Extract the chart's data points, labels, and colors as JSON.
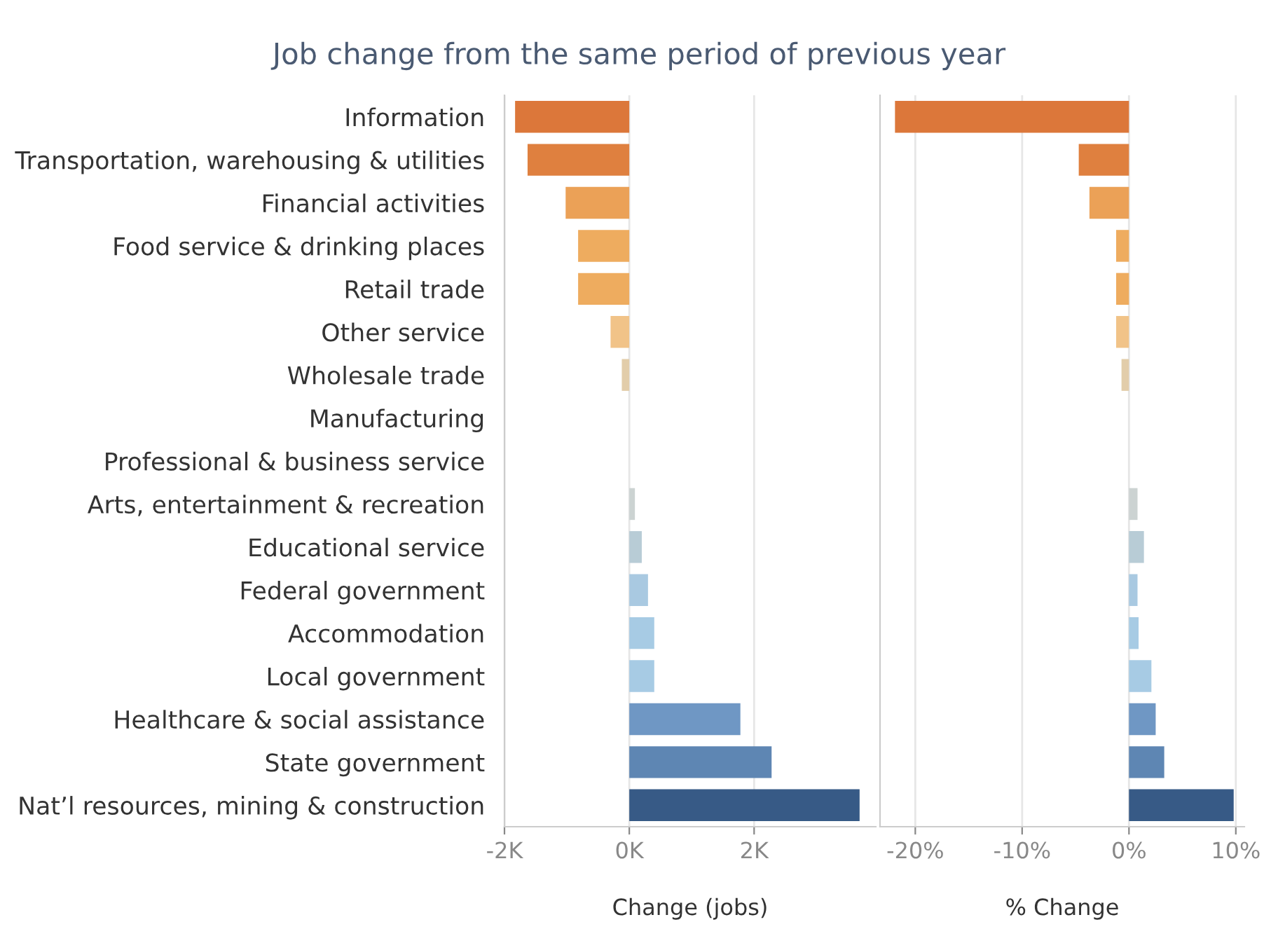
{
  "chart_data": [
    {
      "type": "bar",
      "orientation": "horizontal",
      "title": "Job change from the same period of previous year",
      "xlabel": "Change (jobs)",
      "categories": [
        "Information",
        "Transportation, warehousing & utilities",
        "Financial activities",
        "Food service & drinking places",
        "Retail trade",
        "Other service",
        "Wholesale trade",
        "Manufacturing",
        "Professional & business service",
        "Arts, entertainment & recreation",
        "Educational service",
        "Federal government",
        "Accommodation",
        "Local government",
        "Healthcare & social assistance",
        "State government",
        "Nat’l resources, mining & construction"
      ],
      "values": [
        -1830,
        -1630,
        -1020,
        -820,
        -820,
        -300,
        -120,
        null,
        null,
        90,
        200,
        300,
        400,
        400,
        1780,
        2280,
        3690
      ],
      "colors": [
        "#dc773a",
        "#df803f",
        "#eba157",
        "#eeac5f",
        "#eeac5f",
        "#f1c388",
        "#e2cdaa",
        "#ddd5c6",
        "#ddd8cf",
        "#ccd3d2",
        "#b8ccd6",
        "#a9c9e1",
        "#a7cbe4",
        "#a7cbe4",
        "#6f97c4",
        "#5e86b3",
        "#375a86"
      ],
      "xlim": [
        -2000,
        3950
      ],
      "xticks": [
        {
          "value": -2000,
          "label": "-2K"
        },
        {
          "value": 0,
          "label": "0K"
        },
        {
          "value": 2000,
          "label": "2K"
        }
      ],
      "grid": "x"
    },
    {
      "type": "bar",
      "orientation": "horizontal",
      "xlabel": "% Change",
      "categories": [
        null,
        null,
        null,
        null,
        null,
        null,
        null,
        null,
        null,
        null,
        null,
        null,
        null,
        null,
        null,
        null,
        null
      ],
      "values": [
        -21.9,
        -4.7,
        -3.7,
        -1.2,
        -1.2,
        -1.2,
        -0.7,
        null,
        null,
        0.8,
        1.4,
        0.8,
        0.9,
        2.1,
        2.5,
        3.3,
        9.8
      ],
      "colors": [
        "#dc773a",
        "#df803f",
        "#eba157",
        "#eeac5f",
        "#eeac5f",
        "#f1c388",
        "#e2cdaa",
        "#ddd5c6",
        "#ddd8cf",
        "#ccd3d2",
        "#b8ccd6",
        "#a9c9e1",
        "#a7cbe4",
        "#a7cbe4",
        "#6f97c4",
        "#5e86b3",
        "#375a86"
      ],
      "xlim": [
        -23.3,
        10.8
      ],
      "xticks": [
        {
          "value": -20,
          "label": "-20%"
        },
        {
          "value": -10,
          "label": "-10%"
        },
        {
          "value": 0,
          "label": "0%"
        },
        {
          "value": 10,
          "label": "10%"
        }
      ],
      "grid": "x",
      "tick_labels": "x"
    }
  ]
}
